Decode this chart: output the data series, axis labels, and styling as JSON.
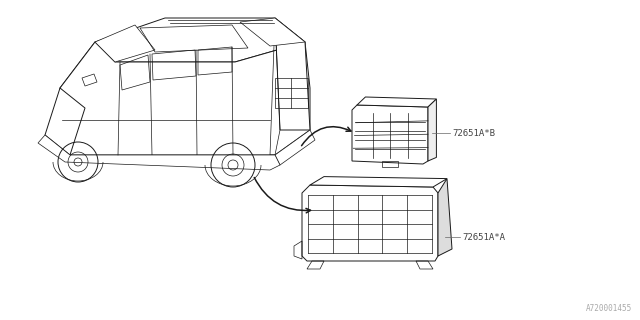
{
  "background_color": "#ffffff",
  "line_color": "#1a1a1a",
  "label_color": "#444444",
  "part_label_A": "72651A*A",
  "part_label_B": "72651A*B",
  "watermark": "A720001455",
  "fig_width": 6.4,
  "fig_height": 3.2,
  "dpi": 100,
  "lw_thin": 0.5,
  "lw_med": 0.7,
  "lw_thick": 0.9
}
